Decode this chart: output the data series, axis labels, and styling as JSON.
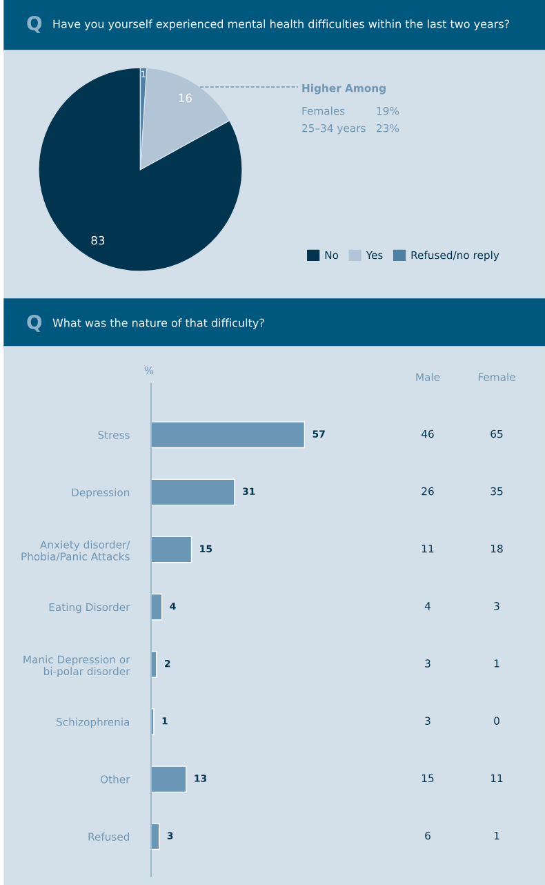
{
  "chart_data": [
    {
      "type": "pie",
      "title": "Have you yourself experienced mental health difficulties within the last two years?",
      "categories": [
        "No",
        "Yes",
        "Refused/no reply"
      ],
      "values": [
        83,
        16,
        1
      ],
      "colors": [
        "#00344f",
        "#b2c5d6",
        "#4f80a1"
      ],
      "data_labels": true,
      "legend": "bottom right",
      "annotations": [
        "Q",
        "Higher Among",
        "Females",
        "19%",
        "25–34 years",
        "23%"
      ]
    },
    {
      "type": "bar",
      "orientation": "horizontal",
      "title": "What was the nature of that difficulty?",
      "xlabel": "%",
      "tick_labels": "y",
      "data_labels": true,
      "categories": [
        "Stress",
        "Depression",
        "Anxiety disorder/\nPhobia/Panic Attacks",
        "Eating Disorder",
        "Manic Depression or\nbi-polar disorder",
        "Schizophrenia",
        "Other",
        "Refused"
      ],
      "series": [
        {
          "color": "#6b97b6",
          "values": [
            57,
            31,
            15,
            4,
            2,
            1,
            13,
            3
          ]
        }
      ],
      "annotations": [
        "Q"
      ]
    },
    {
      "type": "heatmap",
      "categories": [
        "Male",
        "Female"
      ],
      "y_categories": [
        null,
        null,
        null,
        null,
        null,
        null,
        null,
        null
      ],
      "data_labels": true,
      "cells": [
        [
          46,
          65
        ],
        [
          26,
          35
        ],
        [
          11,
          18
        ],
        [
          4,
          3
        ],
        [
          3,
          1
        ],
        [
          3,
          0
        ],
        [
          15,
          11
        ],
        [
          6,
          1
        ]
      ]
    }
  ]
}
